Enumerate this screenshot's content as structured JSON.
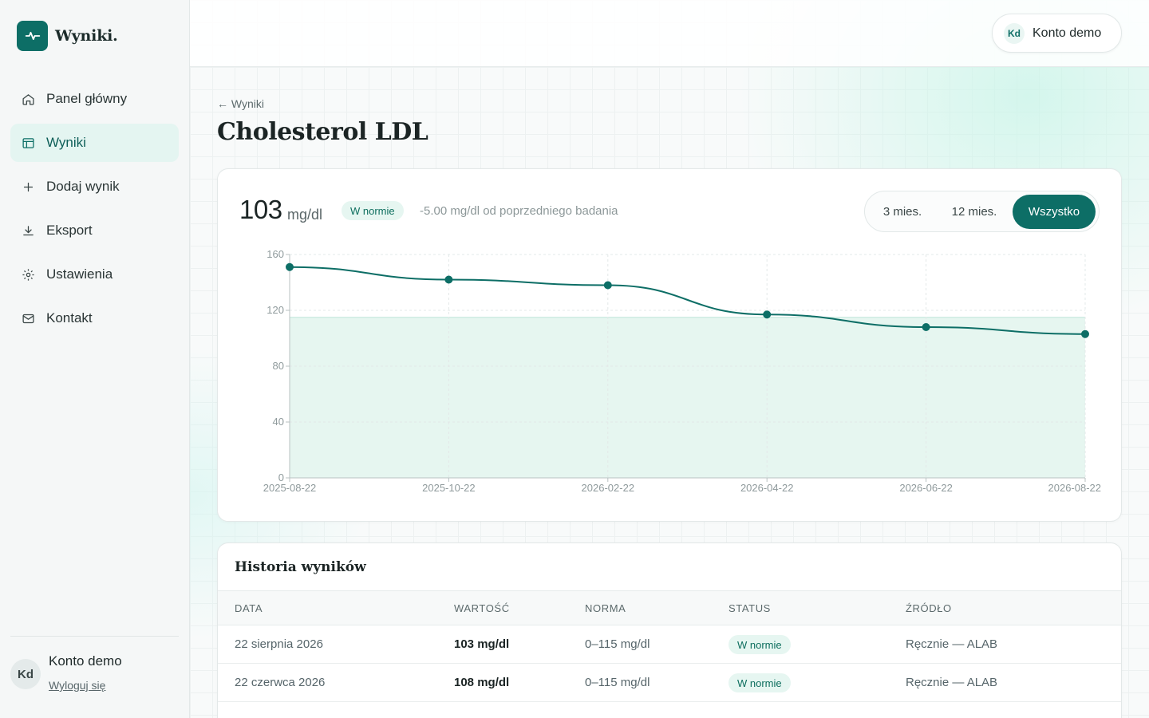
{
  "brand": {
    "name": "Wyniki."
  },
  "sidebar": {
    "items": [
      {
        "label": "Panel główny",
        "icon": "home-icon",
        "active": false
      },
      {
        "label": "Wyniki",
        "icon": "table-icon",
        "active": true
      },
      {
        "label": "Dodaj wynik",
        "icon": "plus-icon",
        "active": false
      },
      {
        "label": "Eksport",
        "icon": "download-icon",
        "active": false
      },
      {
        "label": "Ustawienia",
        "icon": "gear-icon",
        "active": false
      },
      {
        "label": "Kontakt",
        "icon": "mail-icon",
        "active": false
      }
    ],
    "user": {
      "initials": "Kd",
      "name": "Konto demo",
      "logout": "Wyloguj się"
    }
  },
  "topbar": {
    "account_initials": "Kd",
    "account_name": "Konto demo"
  },
  "page": {
    "back": "← Wyniki",
    "title": "Cholesterol LDL"
  },
  "summary": {
    "value": "103",
    "unit": "mg/dl",
    "status": "W normie",
    "delta": "-5.00 mg/dl od poprzedniego badania"
  },
  "range": {
    "options": [
      "3 mies.",
      "12 mies.",
      "Wszystko"
    ],
    "selected": "Wszystko"
  },
  "colors": {
    "accent": "#0d6e66",
    "norm_fill": "#e6f6f0",
    "badge_bg": "#e6f6f1"
  },
  "chart_data": {
    "type": "line",
    "x": [
      "2025-08-22",
      "2025-10-22",
      "2026-02-22",
      "2026-04-22",
      "2026-06-22",
      "2026-08-22"
    ],
    "values": [
      151,
      142,
      138,
      117,
      108,
      103
    ],
    "ylim": [
      0,
      160
    ],
    "yticks": [
      0,
      40,
      80,
      120,
      160
    ],
    "norm_range": [
      0,
      115
    ],
    "grid": true
  },
  "history": {
    "title": "Historia wyników",
    "columns": [
      "DATA",
      "WARTOŚĆ",
      "NORMA",
      "STATUS",
      "ŹRÓDŁO"
    ],
    "rows": [
      {
        "date": "22 sierpnia 2026",
        "value": "103 mg/dl",
        "norm": "0–115 mg/dl",
        "status": "W normie",
        "source": "Ręcznie — ALAB"
      },
      {
        "date": "22 czerwca 2026",
        "value": "108 mg/dl",
        "norm": "0–115 mg/dl",
        "status": "W normie",
        "source": "Ręcznie — ALAB"
      }
    ]
  }
}
